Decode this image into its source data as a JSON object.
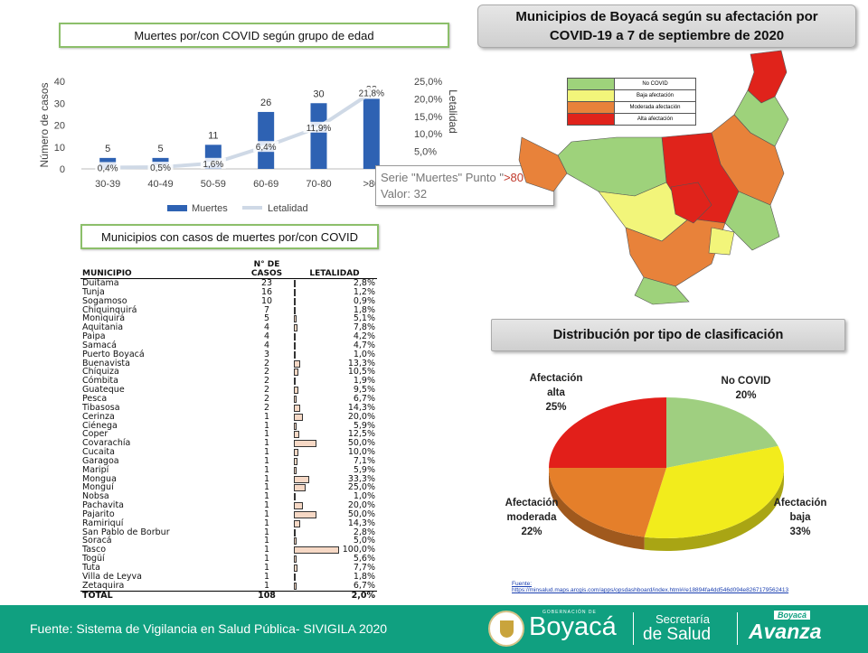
{
  "bar_chart_title": "Muertes por/con COVID según grupo de edad",
  "table_title": "Municipios con casos de muertes por/con COVID",
  "map_title": "Municipios de Boyacá según su afectación por COVID-19 a 7 de septiembre de 2020",
  "pie_title": "Distribución por tipo de clasificación",
  "tooltip": {
    "line1_prefix": "Serie \"Muertes\" Punto \"",
    "line1_point": ">80",
    "line1_suffix": "\"",
    "line2": "Valor: 32"
  },
  "map_legend": [
    {
      "label": "No COVID",
      "color": "#9ed27b"
    },
    {
      "label": "Baja afectación",
      "color": "#f2f57a"
    },
    {
      "label": "Moderada afectación",
      "color": "#e8823a"
    },
    {
      "label": "Alta afectación",
      "color": "#e0231b"
    }
  ],
  "chart_data": [
    {
      "type": "bar",
      "title": "Muertes por/con COVID según grupo de edad",
      "xlabel": "",
      "ylabel": "Número de casos",
      "y2label": "Letalidad",
      "categories": [
        "30-39",
        "40-49",
        "50-59",
        "60-69",
        "70-80",
        ">80"
      ],
      "ylim": [
        0,
        40
      ],
      "y2lim": [
        0,
        25
      ],
      "yticks": [
        "0",
        "10",
        "20",
        "30",
        "40"
      ],
      "y2ticks": [
        "5,0%",
        "10,0%",
        "15,0%",
        "20,0%",
        "25,0%"
      ],
      "series": [
        {
          "name": "Muertes",
          "type": "bar",
          "color": "#2e62b3",
          "values": [
            5,
            5,
            11,
            26,
            30,
            32
          ],
          "labels": [
            "5",
            "5",
            "11",
            "26",
            "30",
            "32"
          ]
        },
        {
          "name": "Letalidad",
          "type": "line",
          "axis": "secondary",
          "color": "#cfd9e6",
          "values": [
            0.4,
            0.5,
            1.6,
            6.4,
            11.9,
            21.8
          ],
          "labels": [
            "0,4%",
            "0,5%",
            "1,6%",
            "6,4%",
            "11,9%",
            "21,8%"
          ]
        }
      ],
      "legend": "bottom"
    },
    {
      "type": "pie",
      "title": "Distribución por tipo de clasificación",
      "slices": [
        {
          "name_lines": [
            "No COVID"
          ],
          "value": 20,
          "label": "20%",
          "color": "#9fcf80"
        },
        {
          "name_lines": [
            "Afectación",
            "baja"
          ],
          "value": 33,
          "label": "33%",
          "color": "#f2ec1c"
        },
        {
          "name_lines": [
            "Afectación",
            "moderada"
          ],
          "value": 22,
          "label": "22%",
          "color": "#e57f2a"
        },
        {
          "name_lines": [
            "Afectación",
            "alta"
          ],
          "value": 25,
          "label": "25%",
          "color": "#e21f1a"
        }
      ]
    },
    {
      "type": "table",
      "title": "Municipios con casos de muertes por/con COVID",
      "headers": [
        "MUNICIPIO",
        "N° DE CASOS",
        "LETALIDAD"
      ],
      "rows": [
        [
          "Duitama",
          "23",
          "2,8%",
          2.8
        ],
        [
          "Tunja",
          "16",
          "1,2%",
          1.2
        ],
        [
          "Sogamoso",
          "10",
          "0,9%",
          0.9
        ],
        [
          "Chiquinquirá",
          "7",
          "1,8%",
          1.8
        ],
        [
          "Moniquirá",
          "5",
          "5,1%",
          5.1
        ],
        [
          "Aquitania",
          "4",
          "7,8%",
          7.8
        ],
        [
          "Paipa",
          "4",
          "4,2%",
          4.2
        ],
        [
          "Samacá",
          "4",
          "4,7%",
          4.7
        ],
        [
          "Puerto Boyacá",
          "3",
          "1,0%",
          1.0
        ],
        [
          "Buenavista",
          "2",
          "13,3%",
          13.3
        ],
        [
          "Chíquiza",
          "2",
          "10,5%",
          10.5
        ],
        [
          "Cómbita",
          "2",
          "1,9%",
          1.9
        ],
        [
          "Guateque",
          "2",
          "9,5%",
          9.5
        ],
        [
          "Pesca",
          "2",
          "6,7%",
          6.7
        ],
        [
          "Tibasosa",
          "2",
          "14,3%",
          14.3
        ],
        [
          "Cerinza",
          "1",
          "20,0%",
          20.0
        ],
        [
          "Ciénega",
          "1",
          "5,9%",
          5.9
        ],
        [
          "Coper",
          "1",
          "12,5%",
          12.5
        ],
        [
          "Covarachía",
          "1",
          "50,0%",
          50.0
        ],
        [
          "Cucaita",
          "1",
          "10,0%",
          10.0
        ],
        [
          "Garagoa",
          "1",
          "7,1%",
          7.1
        ],
        [
          "Maripí",
          "1",
          "5,9%",
          5.9
        ],
        [
          "Mongua",
          "1",
          "33,3%",
          33.3
        ],
        [
          "Monguí",
          "1",
          "25,0%",
          25.0
        ],
        [
          "Nobsa",
          "1",
          "1,0%",
          1.0
        ],
        [
          "Pachavita",
          "1",
          "20,0%",
          20.0
        ],
        [
          "Pajarito",
          "1",
          "50,0%",
          50.0
        ],
        [
          "Ramiriquí",
          "1",
          "14,3%",
          14.3
        ],
        [
          "San Pablo de Borbur",
          "1",
          "2,8%",
          2.8
        ],
        [
          "Soracá",
          "1",
          "5,0%",
          5.0
        ],
        [
          "Tasco",
          "1",
          "100,0%",
          100.0
        ],
        [
          "Togüí",
          "1",
          "5,6%",
          5.6
        ],
        [
          "Tuta",
          "1",
          "7,7%",
          7.7
        ],
        [
          "Villa de Leyva",
          "1",
          "1,8%",
          1.8
        ],
        [
          "Zetaquira",
          "1",
          "6,7%",
          6.7
        ]
      ],
      "total": [
        "TOTAL",
        "108",
        "2,0%"
      ]
    }
  ],
  "source_label": "Fuente:",
  "source_url": "https://minsalud.maps.arcgis.com/apps/opsdashboard/index.html#/e18894fa4dd546d094e8267179562413",
  "footer": {
    "source_text": "Fuente: Sistema de Vigilancia en Salud Pública- SIVIGILA 2020",
    "gov_small": "GOBERNACIÓN DE",
    "gov_name": "Boyacá",
    "sec_line1": "Secretaría",
    "sec_line2": "de Salud",
    "brand_small": "Boyacá",
    "brand_name": "Avanza"
  },
  "colors": {
    "footer_bg": "#10a080",
    "bar": "#2e62b3",
    "table_bar": "#f6d8c5"
  }
}
